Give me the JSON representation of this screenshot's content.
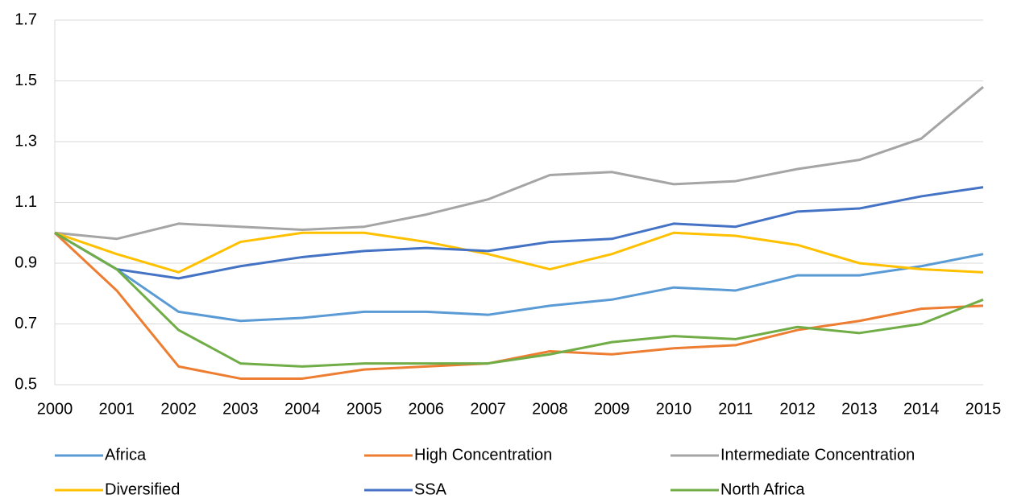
{
  "chart_data": {
    "type": "line",
    "x": [
      2000,
      2001,
      2002,
      2003,
      2004,
      2005,
      2006,
      2007,
      2008,
      2009,
      2010,
      2011,
      2012,
      2013,
      2014,
      2015
    ],
    "xlim": [
      2000,
      2015
    ],
    "xticks": [
      2000,
      2001,
      2002,
      2003,
      2004,
      2005,
      2006,
      2007,
      2008,
      2009,
      2010,
      2011,
      2012,
      2013,
      2014,
      2015
    ],
    "ylim": [
      0.5,
      1.7
    ],
    "yticks": [
      0.5,
      0.7,
      0.9,
      1.1,
      1.3,
      1.5,
      1.7
    ],
    "grid": true,
    "legend": "bottom",
    "series": [
      {
        "name": "Africa",
        "color": "#5b9bd5",
        "values": [
          1.0,
          0.88,
          0.74,
          0.71,
          0.72,
          0.74,
          0.74,
          0.73,
          0.76,
          0.78,
          0.82,
          0.81,
          0.86,
          0.86,
          0.89,
          0.93
        ]
      },
      {
        "name": "High Concentration",
        "color": "#ed7d31",
        "values": [
          1.0,
          0.81,
          0.56,
          0.52,
          0.52,
          0.55,
          0.56,
          0.57,
          0.61,
          0.6,
          0.62,
          0.63,
          0.68,
          0.71,
          0.75,
          0.76
        ]
      },
      {
        "name": "Intermediate Concentration",
        "color": "#a5a5a5",
        "values": [
          1.0,
          0.98,
          1.03,
          1.02,
          1.01,
          1.02,
          1.06,
          1.11,
          1.19,
          1.2,
          1.16,
          1.17,
          1.21,
          1.24,
          1.31,
          1.48
        ]
      },
      {
        "name": "Diversified",
        "color": "#ffc000",
        "values": [
          1.0,
          0.93,
          0.87,
          0.97,
          1.0,
          1.0,
          0.97,
          0.93,
          0.88,
          0.93,
          1.0,
          0.99,
          0.96,
          0.9,
          0.88,
          0.87
        ]
      },
      {
        "name": "SSA",
        "color": "#4472c4",
        "values": [
          1.0,
          0.88,
          0.85,
          0.89,
          0.92,
          0.94,
          0.95,
          0.94,
          0.97,
          0.98,
          1.03,
          1.02,
          1.07,
          1.08,
          1.12,
          1.15
        ]
      },
      {
        "name": "North Africa",
        "color": "#70ad47",
        "values": [
          1.0,
          0.88,
          0.68,
          0.57,
          0.56,
          0.57,
          0.57,
          0.57,
          0.6,
          0.64,
          0.66,
          0.65,
          0.69,
          0.67,
          0.7,
          0.78
        ]
      }
    ]
  }
}
